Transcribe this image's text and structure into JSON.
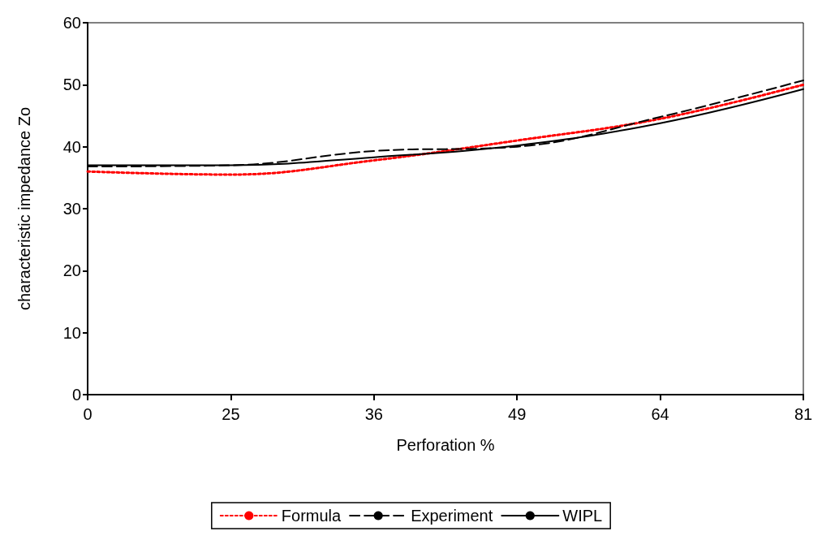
{
  "chart_data": {
    "type": "line",
    "xlabel": "Perforation %",
    "ylabel": "characteristic impedance Zo",
    "categories": [
      "0",
      "25",
      "36",
      "49",
      "64",
      "81"
    ],
    "series": [
      {
        "name": "Formula",
        "color": "#ff0000",
        "line_style": "dotted",
        "values": [
          36,
          35.5,
          37.8,
          41,
          44.5,
          50
        ]
      },
      {
        "name": "Experiment",
        "color": "#000000",
        "line_style": "dashed",
        "values": [
          36.8,
          37,
          39.3,
          40,
          44.8,
          50.7
        ]
      },
      {
        "name": "WIPL",
        "color": "#000000",
        "line_style": "solid",
        "values": [
          37,
          37,
          38.3,
          40.2,
          43.8,
          49.3
        ]
      }
    ],
    "ylim": [
      0,
      60
    ],
    "yticks": [
      0,
      10,
      20,
      30,
      40,
      50,
      60
    ],
    "grid": false,
    "legend": "bottom"
  }
}
